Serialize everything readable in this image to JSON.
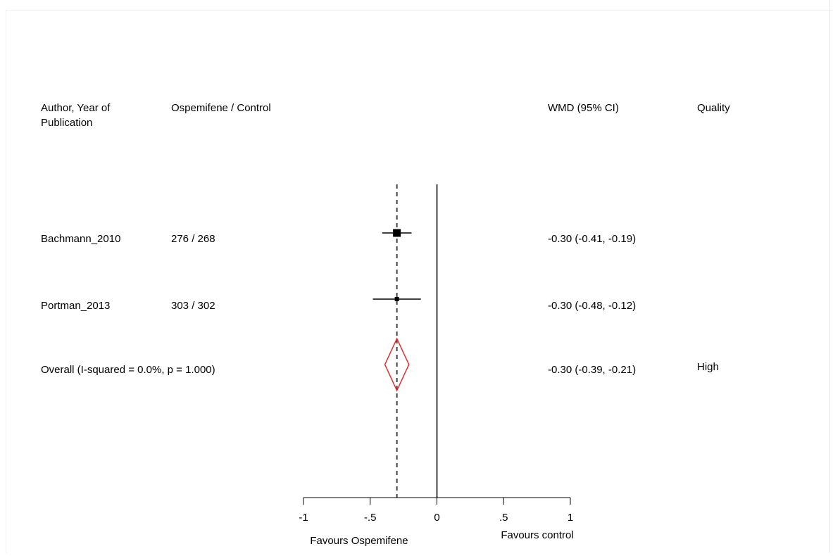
{
  "chart_data": {
    "type": "forest",
    "headers": {
      "study": "Author, Year of Publication",
      "study_line1": "Author, Year of",
      "study_line2": "Publication",
      "counts": "Ospemifene / Control",
      "effect": "WMD (95% CI)",
      "quality": "Quality"
    },
    "studies": [
      {
        "name": "Bachmann_2010",
        "counts": "276 / 268",
        "wmd": -0.3,
        "lower": -0.41,
        "upper": -0.19,
        "ci_text": "-0.30 (-0.41, -0.19)",
        "quality": ""
      },
      {
        "name": "Portman_2013",
        "counts": "303 / 302",
        "wmd": -0.3,
        "lower": -0.48,
        "upper": -0.12,
        "ci_text": "-0.30 (-0.48, -0.12)",
        "quality": ""
      }
    ],
    "overall": {
      "label": "Overall  (I-squared = 0.0%, p = 1.000)",
      "wmd": -0.3,
      "lower": -0.39,
      "upper": -0.21,
      "ci_text": "-0.30 (-0.39, -0.21)",
      "quality": "High"
    },
    "xlim": [
      -1,
      1
    ],
    "ticks": [
      -1,
      -0.5,
      0,
      0.5,
      1
    ],
    "tick_labels": [
      "-1",
      "-.5",
      "0",
      ".5",
      "1"
    ],
    "favours_left": "Favours Ospemifene",
    "favours_right": "Favours control",
    "colors": {
      "overall_diamond": "#e03030",
      "marks": "#000000",
      "ci_line": "#404040",
      "reference_line": "#404040",
      "pooled_line": "#404040"
    }
  }
}
